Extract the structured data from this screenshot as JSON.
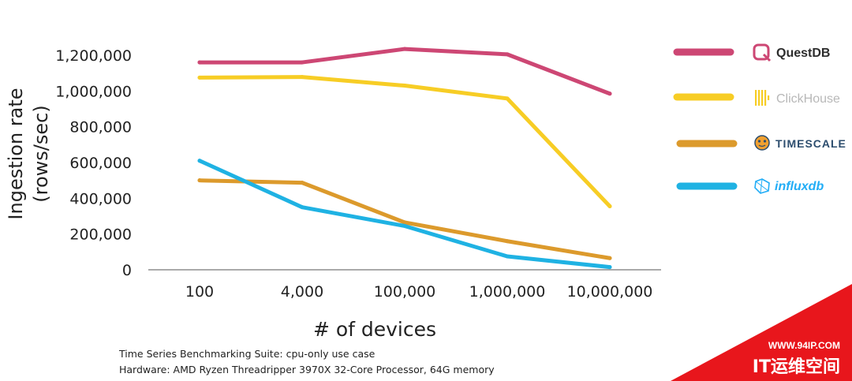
{
  "chart_data": {
    "type": "line",
    "categories": [
      "100",
      "4,000",
      "100,000",
      "1,000,000",
      "10,000,000"
    ],
    "xlabel": "# of devices",
    "ylabel": [
      "Ingestion rate",
      "(rows/sec)"
    ],
    "ylim": [
      0,
      1200000
    ],
    "yticks": [
      "0",
      "200,000",
      "400,000",
      "600,000",
      "800,000",
      "1,000,000",
      "1,200,000"
    ],
    "grid": false,
    "legend_position": "right",
    "series": [
      {
        "name": "QuestDB",
        "color": "#cd4774",
        "icon": "questdb-logo",
        "values": [
          1160000,
          1160000,
          1235000,
          1205000,
          985000
        ]
      },
      {
        "name": "ClickHouse",
        "color": "#f7cd25",
        "icon": "clickhouse-logo",
        "values": [
          1075000,
          1078000,
          1030000,
          958000,
          355000
        ]
      },
      {
        "name": "TIMESCALE",
        "color": "#dc9a2c",
        "icon": "timescale-tiger-logo",
        "values": [
          500000,
          487000,
          265000,
          160000,
          65000
        ]
      },
      {
        "name": "influxdb",
        "color": "#1fb2e3",
        "icon": "influxdb-logo",
        "values": [
          610000,
          350000,
          245000,
          75000,
          15000
        ]
      }
    ]
  },
  "footnotes": [
    "Time Series Benchmarking Suite: cpu-only use case",
    "Hardware: AMD Ryzen Threadripper 3970X 32-Core Processor, 64G memory"
  ],
  "watermark": {
    "url": "WWW.94IP.COM",
    "name": "IT运维空间",
    "color": "#e8161c"
  }
}
